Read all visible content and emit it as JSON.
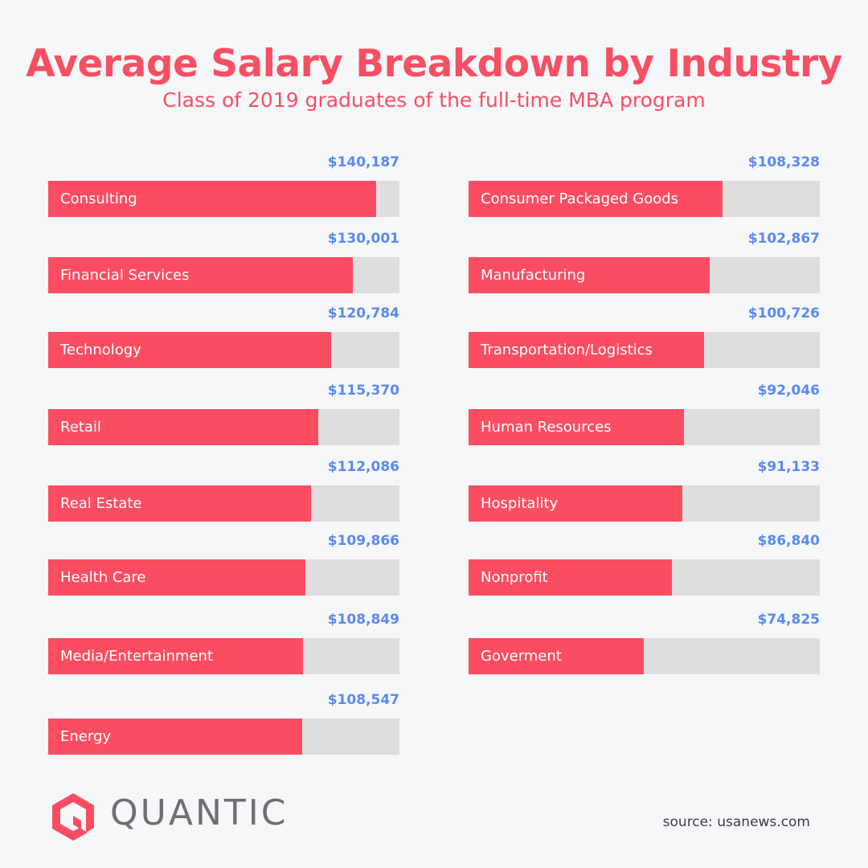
{
  "header": {
    "title": "Average Salary Breakdown by Industry",
    "subtitle": "Class of 2019 graduates of the full-time MBA program"
  },
  "colors": {
    "accent": "#fb4d62",
    "value": "#5a8af0",
    "track": "#dedede",
    "background": "#f6f7f9"
  },
  "chart_data": {
    "type": "bar",
    "orientation": "horizontal",
    "title": "Average Salary Breakdown by Industry",
    "subtitle": "Class of 2019 graduates of the full-time MBA program",
    "xlim": [
      0,
      150000
    ],
    "categories": [
      "Consulting",
      "Financial Services",
      "Technology",
      "Retail",
      "Real Estate",
      "Health Care",
      "Media/Entertainment",
      "Energy",
      "Consumer Packaged Goods",
      "Manufacturing",
      "Transportation/Logistics",
      "Human Resources",
      "Hospitality",
      "Nonprofit",
      "Goverment"
    ],
    "values": [
      140187,
      130001,
      120784,
      115370,
      112086,
      109866,
      108849,
      108547,
      108328,
      102867,
      100726,
      92046,
      91133,
      86840,
      74825
    ],
    "value_labels": [
      "$140,187",
      "$130,001",
      "$120,784",
      "$115,370",
      "$112,086",
      "$109,866",
      "$108,849",
      "$108,547",
      "$108,328",
      "$102,867",
      "$100,726",
      "$92,046",
      "$91,133",
      "$86,840",
      "$74,825"
    ]
  },
  "footer": {
    "logo_text": "QUANTIC",
    "source": "source: usanews.com"
  }
}
